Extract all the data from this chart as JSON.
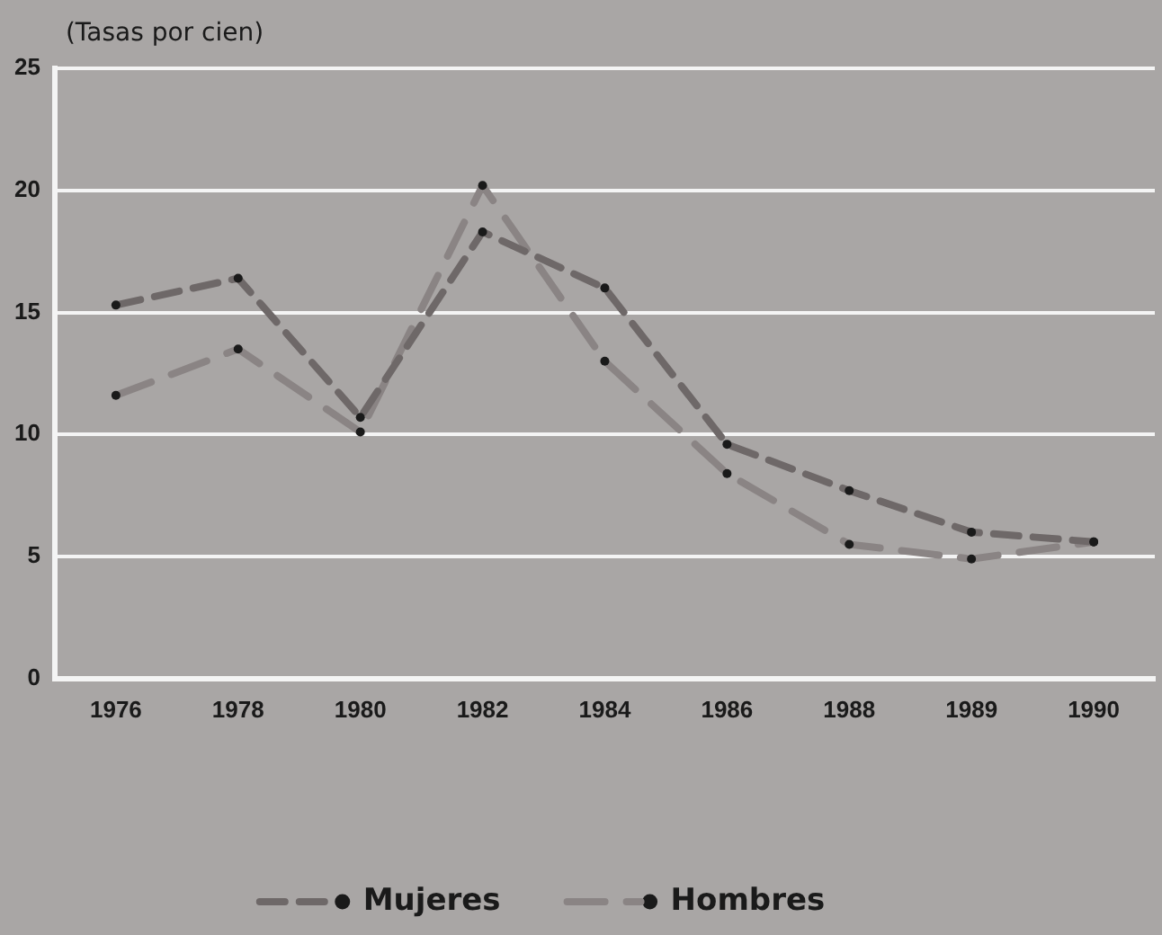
{
  "chart_data": {
    "type": "line",
    "ylabel": "(Tasas por cien)",
    "categories": [
      "1976",
      "1978",
      "1980",
      "1982",
      "1984",
      "1986",
      "1988",
      "1989",
      "1990"
    ],
    "series": [
      {
        "name": "Mujeres",
        "color": "#6e6868",
        "line_style": "dashed",
        "values": [
          15.3,
          16.4,
          10.7,
          18.3,
          16.0,
          9.6,
          7.7,
          6.0,
          5.6
        ]
      },
      {
        "name": "Hombres",
        "color": "#8a8484",
        "line_style": "dashed",
        "values": [
          11.6,
          13.5,
          10.1,
          20.2,
          13.0,
          8.4,
          5.5,
          4.9,
          5.6
        ]
      }
    ],
    "ylim": [
      0,
      25
    ],
    "yticks": [
      0,
      5,
      10,
      15,
      20,
      25
    ],
    "grid": "y",
    "legend": "bottom",
    "marker": "circle"
  }
}
